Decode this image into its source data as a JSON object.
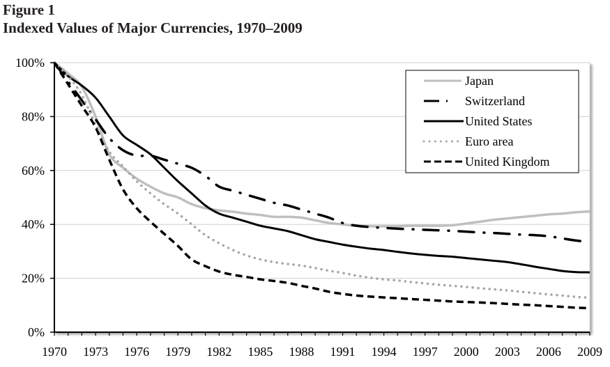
{
  "figure": {
    "label": "Figure 1",
    "title": "Indexed Values of Major Currencies, 1970–2009"
  },
  "chart_data": {
    "type": "line",
    "title": "Indexed Values of Major Currencies, 1970–2009",
    "xlabel": "",
    "ylabel": "",
    "xlim": [
      1970,
      2009
    ],
    "ylim": [
      0,
      100
    ],
    "grid": true,
    "legend_position": "top-right",
    "x_tick_labels": [
      "1970",
      "1973",
      "1976",
      "1979",
      "1982",
      "1985",
      "1988",
      "1991",
      "1994",
      "1997",
      "2000",
      "2003",
      "2006",
      "2009"
    ],
    "y_tick_labels": [
      "0%",
      "20%",
      "40%",
      "60%",
      "80%",
      "100%"
    ],
    "y_ticks": [
      0,
      20,
      40,
      60,
      80,
      100
    ],
    "x": [
      1970,
      1971,
      1972,
      1973,
      1974,
      1975,
      1976,
      1977,
      1978,
      1979,
      1980,
      1981,
      1982,
      1983,
      1984,
      1985,
      1986,
      1987,
      1988,
      1989,
      1990,
      1991,
      1992,
      1993,
      1994,
      1995,
      1996,
      1997,
      1998,
      1999,
      2000,
      2001,
      2002,
      2003,
      2004,
      2005,
      2006,
      2007,
      2008,
      2009
    ],
    "series": [
      {
        "name": "Japan",
        "style": "solid-gray",
        "color": "#bfbfbf",
        "values": [
          100,
          96,
          91,
          80,
          66,
          61,
          57,
          54,
          51.5,
          50,
          47.5,
          46,
          45.2,
          44.7,
          44,
          43.5,
          42.8,
          42.8,
          42.5,
          41.5,
          40.5,
          40,
          39.5,
          39.3,
          39.3,
          39.3,
          39.5,
          39.5,
          39.5,
          39.7,
          40.3,
          41,
          41.7,
          42.2,
          42.7,
          43.2,
          43.7,
          44,
          44.5,
          44.8
        ]
      },
      {
        "name": "Switzerland",
        "style": "dash-dot-black",
        "color": "#000000",
        "values": [
          100,
          93,
          86,
          79,
          72,
          67.5,
          65.5,
          65.5,
          64,
          62.5,
          61,
          58,
          54,
          52.5,
          51,
          49.5,
          48,
          47,
          45.5,
          44,
          42.5,
          40.5,
          39.5,
          39,
          38.7,
          38.4,
          38.2,
          38,
          37.8,
          37.6,
          37.3,
          37,
          36.8,
          36.5,
          36.2,
          36,
          35.6,
          34.8,
          34,
          33.5
        ]
      },
      {
        "name": "United States",
        "style": "solid-black",
        "color": "#000000",
        "values": [
          100,
          95,
          91.5,
          87,
          80,
          73,
          69.5,
          66,
          61,
          56,
          51.5,
          47,
          44,
          42.5,
          41,
          39.5,
          38.5,
          37.5,
          36,
          34.5,
          33.5,
          32.5,
          31.7,
          31,
          30.5,
          29.8,
          29.2,
          28.7,
          28.3,
          28,
          27.5,
          27,
          26.5,
          26,
          25.2,
          24.3,
          23.5,
          22.7,
          22.3,
          22.2
        ]
      },
      {
        "name": "Euro area",
        "style": "dotted-gray",
        "color": "#a6a6a6",
        "values": [
          100,
          95,
          88,
          77,
          67,
          61.5,
          56,
          51.5,
          47.5,
          44,
          40,
          36,
          33,
          30.5,
          28.5,
          27,
          26,
          25.3,
          24.7,
          23.8,
          22.8,
          22,
          21,
          20.2,
          19.6,
          19.2,
          18.6,
          18.1,
          17.6,
          17.2,
          16.8,
          16.3,
          15.9,
          15.5,
          15,
          14.5,
          14,
          13.6,
          13.1,
          12.8
        ]
      },
      {
        "name": "United Kingdom",
        "style": "dashed-black",
        "color": "#000000",
        "values": [
          100,
          92,
          84,
          76,
          64,
          53,
          46,
          41,
          36.5,
          32,
          27,
          24.5,
          22.5,
          21.3,
          20.5,
          19.6,
          19,
          18.3,
          17.2,
          16.2,
          15,
          14.2,
          13.6,
          13.2,
          12.9,
          12.6,
          12.3,
          12,
          11.7,
          11.4,
          11.2,
          11,
          10.8,
          10.5,
          10.2,
          10,
          9.7,
          9.4,
          9.1,
          8.9
        ]
      }
    ]
  }
}
